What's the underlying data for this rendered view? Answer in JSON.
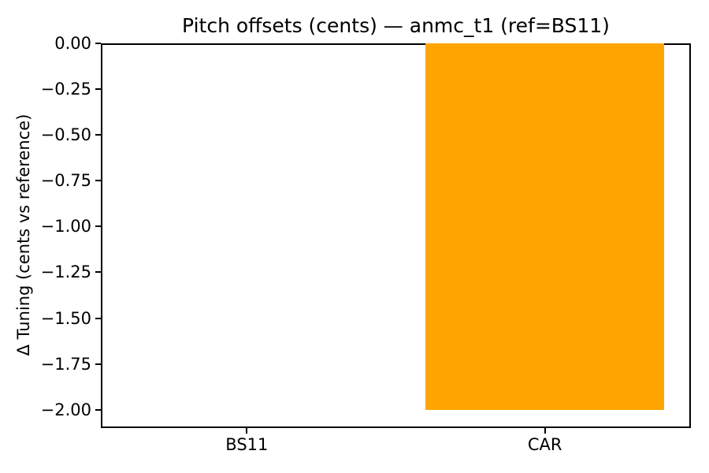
{
  "chart_data": {
    "type": "bar",
    "title": "Pitch offsets (cents) — anmc_t1 (ref=BS11)",
    "xlabel": "",
    "ylabel": "Δ Tuning (cents vs reference)",
    "categories": [
      "BS11",
      "CAR"
    ],
    "values": [
      0,
      -2.0
    ],
    "yticks": [
      0,
      -0.25,
      -0.5,
      -0.75,
      -1.0,
      -1.25,
      -1.5,
      -1.75,
      -2.0
    ],
    "ytick_labels": [
      "0.00",
      "−0.25",
      "−0.50",
      "−0.75",
      "−1.00",
      "−1.25",
      "−1.50",
      "−1.75",
      "−2.00"
    ],
    "ylim": [
      -2.1,
      0
    ],
    "xlim": [
      -0.49,
      1.49
    ],
    "bar_width": 0.8,
    "bar_color": "#ffa500",
    "grid": false,
    "legend": null,
    "background": "#ffffff",
    "spine_color": "#000000"
  }
}
